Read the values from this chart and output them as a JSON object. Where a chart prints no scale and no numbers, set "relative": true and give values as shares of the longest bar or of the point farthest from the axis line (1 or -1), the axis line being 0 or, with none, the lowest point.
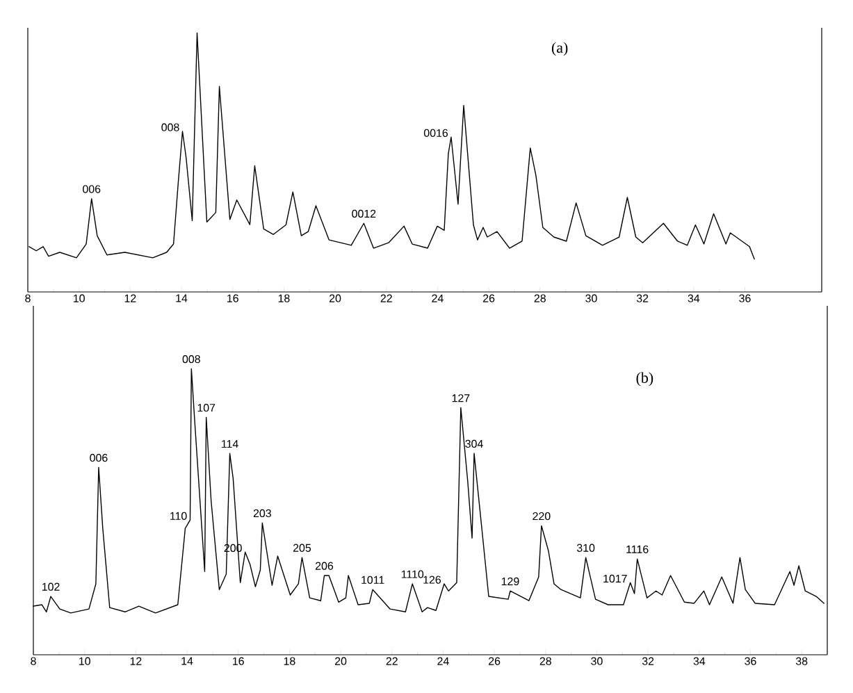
{
  "chart_data": [
    {
      "type": "line",
      "title": "(a)",
      "relative": true,
      "color": "#000000",
      "xlim": [
        8,
        39
      ],
      "xticks": [
        8,
        10,
        12,
        14,
        16,
        18,
        20,
        22,
        24,
        26,
        28,
        30,
        32,
        34,
        36
      ],
      "x": [
        8.05,
        8.33,
        8.6,
        8.81,
        9.25,
        9.9,
        10.28,
        10.49,
        10.71,
        11.09,
        11.79,
        12.88,
        13.42,
        13.69,
        13.88,
        14.04,
        14.18,
        14.42,
        14.61,
        14.99,
        15.34,
        15.48,
        15.89,
        16.16,
        16.67,
        16.86,
        17.21,
        17.59,
        18.08,
        18.35,
        18.68,
        18.95,
        19.25,
        19.76,
        20.63,
        21.12,
        21.5,
        22.09,
        22.69,
        23.01,
        23.61,
        23.99,
        24.26,
        24.42,
        24.53,
        24.8,
        25.02,
        25.4,
        25.56,
        25.78,
        25.94,
        26.32,
        26.81,
        27.3,
        27.62,
        27.84,
        28.11,
        28.54,
        29.03,
        29.41,
        29.79,
        30.44,
        31.09,
        31.41,
        31.74,
        32.01,
        32.82,
        33.37,
        33.75,
        34.07,
        34.4,
        34.78,
        35.26,
        35.43,
        36.18,
        36.37
      ],
      "values": [
        0.175,
        0.159,
        0.175,
        0.138,
        0.153,
        0.132,
        0.185,
        0.36,
        0.217,
        0.143,
        0.153,
        0.132,
        0.153,
        0.185,
        0.43,
        0.62,
        0.52,
        0.275,
        1.0,
        0.27,
        0.307,
        0.794,
        0.28,
        0.355,
        0.26,
        0.487,
        0.243,
        0.222,
        0.259,
        0.386,
        0.217,
        0.233,
        0.333,
        0.201,
        0.18,
        0.265,
        0.169,
        0.19,
        0.254,
        0.185,
        0.169,
        0.254,
        0.238,
        0.534,
        0.598,
        0.339,
        0.72,
        0.259,
        0.201,
        0.249,
        0.212,
        0.233,
        0.169,
        0.196,
        0.556,
        0.45,
        0.249,
        0.212,
        0.196,
        0.344,
        0.217,
        0.18,
        0.212,
        0.365,
        0.212,
        0.19,
        0.265,
        0.196,
        0.18,
        0.259,
        0.185,
        0.302,
        0.185,
        0.228,
        0.175,
        0.127
      ],
      "annotations": [
        {
          "text": "006",
          "x": 10.49,
          "y": 0.36
        },
        {
          "text": "008",
          "x": 14.04,
          "y": 0.62
        },
        {
          "text": "0012",
          "x": 21.12,
          "y": 0.265
        },
        {
          "text": "0016",
          "x": 24.53,
          "y": 0.598
        }
      ]
    },
    {
      "type": "line",
      "title": "(b)",
      "relative": true,
      "color": "#000000",
      "xlim": [
        8,
        39
      ],
      "xticks": [
        8,
        10,
        12,
        14,
        16,
        18,
        20,
        22,
        24,
        26,
        28,
        30,
        32,
        34,
        36,
        38
      ],
      "x": [
        8.0,
        8.33,
        8.51,
        8.68,
        9.03,
        9.46,
        10.17,
        10.44,
        10.55,
        10.71,
        10.98,
        11.58,
        12.12,
        12.77,
        13.64,
        13.93,
        14.12,
        14.17,
        14.29,
        14.69,
        14.75,
        14.94,
        15.26,
        15.53,
        15.67,
        15.8,
        16.08,
        16.27,
        16.46,
        16.67,
        16.86,
        16.94,
        17.32,
        17.54,
        18.03,
        18.35,
        18.49,
        18.79,
        19.22,
        19.36,
        19.54,
        19.92,
        20.2,
        20.3,
        20.68,
        21.12,
        21.25,
        21.93,
        22.53,
        22.8,
        23.18,
        23.39,
        23.72,
        24.04,
        24.21,
        24.53,
        24.69,
        24.96,
        25.13,
        25.21,
        25.51,
        25.78,
        26.54,
        26.62,
        27.35,
        27.73,
        27.84,
        28.11,
        28.33,
        28.6,
        29.36,
        29.57,
        29.95,
        30.44,
        31.04,
        31.31,
        31.47,
        31.58,
        31.96,
        32.31,
        32.55,
        32.88,
        33.42,
        33.8,
        34.18,
        34.4,
        34.88,
        35.32,
        35.59,
        35.8,
        36.18,
        36.94,
        37.54,
        37.7,
        37.89,
        38.14,
        38.57,
        38.87
      ],
      "values": [
        0.17,
        0.175,
        0.15,
        0.204,
        0.16,
        0.146,
        0.16,
        0.248,
        0.655,
        0.442,
        0.165,
        0.15,
        0.17,
        0.146,
        0.175,
        0.442,
        0.471,
        1.0,
        0.83,
        0.291,
        0.83,
        0.539,
        0.228,
        0.282,
        0.704,
        0.617,
        0.252,
        0.359,
        0.316,
        0.238,
        0.296,
        0.461,
        0.243,
        0.345,
        0.209,
        0.248,
        0.34,
        0.199,
        0.189,
        0.277,
        0.277,
        0.184,
        0.199,
        0.277,
        0.175,
        0.18,
        0.228,
        0.16,
        0.15,
        0.248,
        0.15,
        0.165,
        0.155,
        0.248,
        0.223,
        0.252,
        0.864,
        0.607,
        0.408,
        0.704,
        0.442,
        0.204,
        0.194,
        0.223,
        0.189,
        0.272,
        0.451,
        0.364,
        0.248,
        0.228,
        0.199,
        0.34,
        0.194,
        0.175,
        0.175,
        0.252,
        0.214,
        0.335,
        0.199,
        0.223,
        0.209,
        0.277,
        0.184,
        0.18,
        0.223,
        0.175,
        0.272,
        0.18,
        0.34,
        0.228,
        0.18,
        0.175,
        0.291,
        0.243,
        0.311,
        0.223,
        0.204,
        0.18
      ],
      "annotations": [
        {
          "text": "102",
          "x": 8.68,
          "y": 0.204
        },
        {
          "text": "006",
          "x": 10.55,
          "y": 0.655
        },
        {
          "text": "110",
          "x": 14.12,
          "y": 0.471
        },
        {
          "text": "008",
          "x": 14.17,
          "y": 1.0
        },
        {
          "text": "107",
          "x": 14.75,
          "y": 0.83
        },
        {
          "text": "114",
          "x": 15.67,
          "y": 0.704
        },
        {
          "text": "200",
          "x": 16.27,
          "y": 0.359
        },
        {
          "text": "203",
          "x": 16.94,
          "y": 0.461
        },
        {
          "text": "205",
          "x": 18.49,
          "y": 0.34
        },
        {
          "text": "206",
          "x": 19.36,
          "y": 0.277
        },
        {
          "text": "1011",
          "x": 21.25,
          "y": 0.228
        },
        {
          "text": "1110",
          "x": 22.8,
          "y": 0.248
        },
        {
          "text": "126",
          "x": 24.04,
          "y": 0.248
        },
        {
          "text": "127",
          "x": 24.69,
          "y": 0.864
        },
        {
          "text": "304",
          "x": 25.21,
          "y": 0.704
        },
        {
          "text": "129",
          "x": 26.62,
          "y": 0.223
        },
        {
          "text": "220",
          "x": 27.84,
          "y": 0.451
        },
        {
          "text": "310",
          "x": 29.57,
          "y": 0.34
        },
        {
          "text": "1017",
          "x": 31.31,
          "y": 0.252
        },
        {
          "text": "1116",
          "x": 31.58,
          "y": 0.335
        }
      ]
    }
  ]
}
